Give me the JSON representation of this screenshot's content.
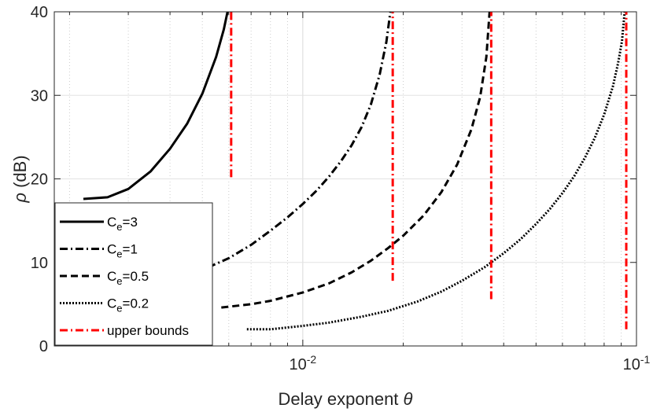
{
  "chart_data": {
    "type": "line",
    "xlabel": "Delay exponent θ",
    "ylabel": "ρ (dB)",
    "xscale": "log",
    "xlim": [
      0.0018,
      0.1
    ],
    "ylim": [
      0,
      40
    ],
    "xticks": [
      {
        "value": 0.01,
        "base": "10",
        "exp": "-2"
      },
      {
        "value": 0.1,
        "base": "10",
        "exp": "-1"
      }
    ],
    "yticks": [
      0,
      10,
      20,
      30,
      40
    ],
    "grid": true,
    "legend_position": "bottom-left",
    "series": [
      {
        "name_base": "C",
        "name_sub": "e",
        "name_rest": "=3",
        "style": "solid",
        "color": "#000000",
        "x": [
          0.0022,
          0.0026,
          0.003,
          0.0035,
          0.004,
          0.0045,
          0.005,
          0.0055,
          0.0058,
          0.00595
        ],
        "y": [
          17.6,
          17.8,
          18.8,
          20.9,
          23.6,
          26.6,
          30.2,
          34.6,
          37.9,
          40
        ]
      },
      {
        "name_base": "C",
        "name_sub": "e",
        "name_rest": "=1",
        "style": "dashdot",
        "color": "#000000",
        "x": [
          0.0052,
          0.006,
          0.007,
          0.008,
          0.009,
          0.01,
          0.011,
          0.012,
          0.013,
          0.014,
          0.015,
          0.016,
          0.017,
          0.0178,
          0.0183
        ],
        "y": [
          9.4,
          10.5,
          12.1,
          13.8,
          15.4,
          17.0,
          18.6,
          20.3,
          22.1,
          24.0,
          26.2,
          28.9,
          32.5,
          36.4,
          40
        ]
      },
      {
        "name_base": "C",
        "name_sub": "e",
        "name_rest": "=0.5",
        "style": "dashed",
        "color": "#000000",
        "x": [
          0.0057,
          0.007,
          0.008,
          0.01,
          0.012,
          0.014,
          0.016,
          0.018,
          0.02,
          0.023,
          0.026,
          0.029,
          0.032,
          0.034,
          0.0355,
          0.0363
        ],
        "y": [
          4.6,
          5.0,
          5.4,
          6.4,
          7.5,
          8.8,
          10.2,
          11.7,
          13.2,
          15.6,
          18.4,
          21.7,
          25.9,
          29.8,
          34.6,
          40
        ]
      },
      {
        "name_base": "C",
        "name_sub": "e",
        "name_rest": "=0.2",
        "style": "dotted",
        "color": "#000000",
        "x": [
          0.0068,
          0.008,
          0.01,
          0.012,
          0.015,
          0.018,
          0.022,
          0.026,
          0.03,
          0.035,
          0.04,
          0.045,
          0.05,
          0.055,
          0.06,
          0.065,
          0.07,
          0.075,
          0.08,
          0.085,
          0.088,
          0.0905,
          0.0922
        ],
        "y": [
          2.0,
          2.0,
          2.4,
          2.8,
          3.5,
          4.2,
          5.3,
          6.5,
          7.8,
          9.4,
          11.1,
          12.8,
          14.6,
          16.4,
          18.3,
          20.3,
          22.5,
          24.9,
          27.7,
          31.1,
          33.8,
          36.5,
          40
        ]
      },
      {
        "name": "upper bounds",
        "style": "dashdot",
        "color": "#ff0000",
        "segments": [
          {
            "x": 0.0061,
            "y": [
              20.2,
              40
            ]
          },
          {
            "x": 0.0186,
            "y": [
              7.8,
              40
            ]
          },
          {
            "x": 0.0367,
            "y": [
              5.6,
              40
            ]
          },
          {
            "x": 0.0932,
            "y": [
              2.0,
              40
            ]
          }
        ]
      }
    ]
  }
}
